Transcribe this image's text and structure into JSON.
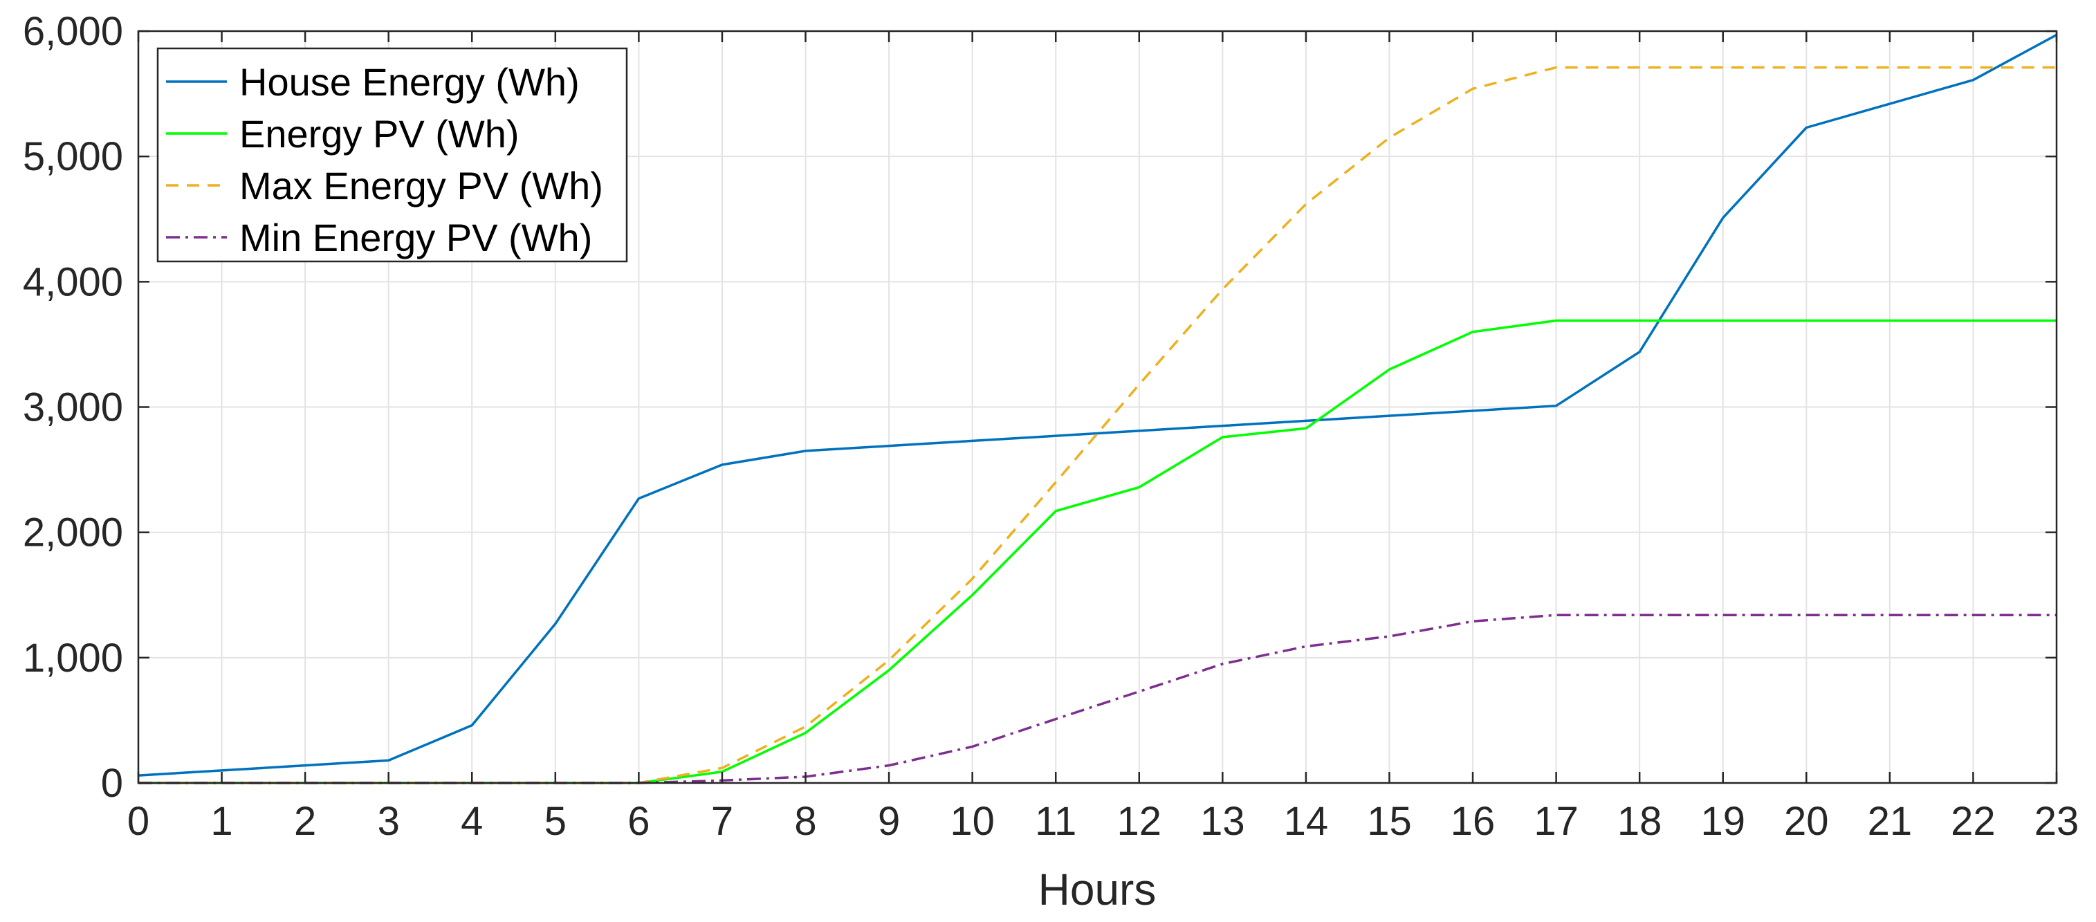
{
  "chart_data": {
    "type": "line",
    "title": "",
    "xlabel": "Hours",
    "ylabel": "",
    "xlim": [
      0,
      23
    ],
    "ylim": [
      0,
      6000
    ],
    "grid": true,
    "legend_position": "top-left",
    "x": [
      0,
      1,
      2,
      3,
      4,
      5,
      6,
      7,
      8,
      9,
      10,
      11,
      12,
      13,
      14,
      15,
      16,
      17,
      18,
      19,
      20,
      21,
      22,
      23
    ],
    "x_ticks": [
      "0",
      "1",
      "2",
      "3",
      "4",
      "5",
      "6",
      "7",
      "8",
      "9",
      "10",
      "11",
      "12",
      "13",
      "14",
      "15",
      "16",
      "17",
      "18",
      "19",
      "20",
      "21",
      "22",
      "23"
    ],
    "y_ticks": [
      0,
      1000,
      2000,
      3000,
      4000,
      5000,
      6000
    ],
    "y_tick_labels": [
      "0",
      "1,000",
      "2,000",
      "3,000",
      "4,000",
      "5,000",
      "6,000"
    ],
    "series": [
      {
        "name": "House Energy (Wh)",
        "color": "#0072BD",
        "dash": "solid",
        "values": [
          60,
          100,
          140,
          180,
          460,
          1270,
          2270,
          2540,
          2650,
          2690,
          2730,
          2770,
          2810,
          2850,
          2890,
          2930,
          2970,
          3010,
          3440,
          4510,
          5230,
          5420,
          5610,
          5970
        ]
      },
      {
        "name": "Energy PV (Wh)",
        "color": "#00FF00",
        "dash": "solid",
        "values": [
          0,
          0,
          0,
          0,
          0,
          0,
          0,
          90,
          400,
          900,
          1500,
          2170,
          2360,
          2760,
          2830,
          3300,
          3600,
          3690,
          3690,
          3690,
          3690,
          3690,
          3690,
          3690
        ]
      },
      {
        "name": "Max Energy PV (Wh)",
        "color": "#EDB120",
        "dash": "dashed",
        "values": [
          0,
          0,
          0,
          0,
          0,
          0,
          0,
          120,
          450,
          980,
          1630,
          2400,
          3180,
          3940,
          4620,
          5150,
          5540,
          5710,
          5710,
          5710,
          5710,
          5710,
          5710,
          5710
        ]
      },
      {
        "name": "Min Energy PV (Wh)",
        "color": "#7E2F8E",
        "dash": "dashdot",
        "values": [
          0,
          0,
          0,
          0,
          0,
          0,
          0,
          20,
          50,
          140,
          290,
          510,
          730,
          950,
          1090,
          1170,
          1290,
          1340,
          1340,
          1340,
          1340,
          1340,
          1340,
          1340
        ]
      }
    ]
  }
}
